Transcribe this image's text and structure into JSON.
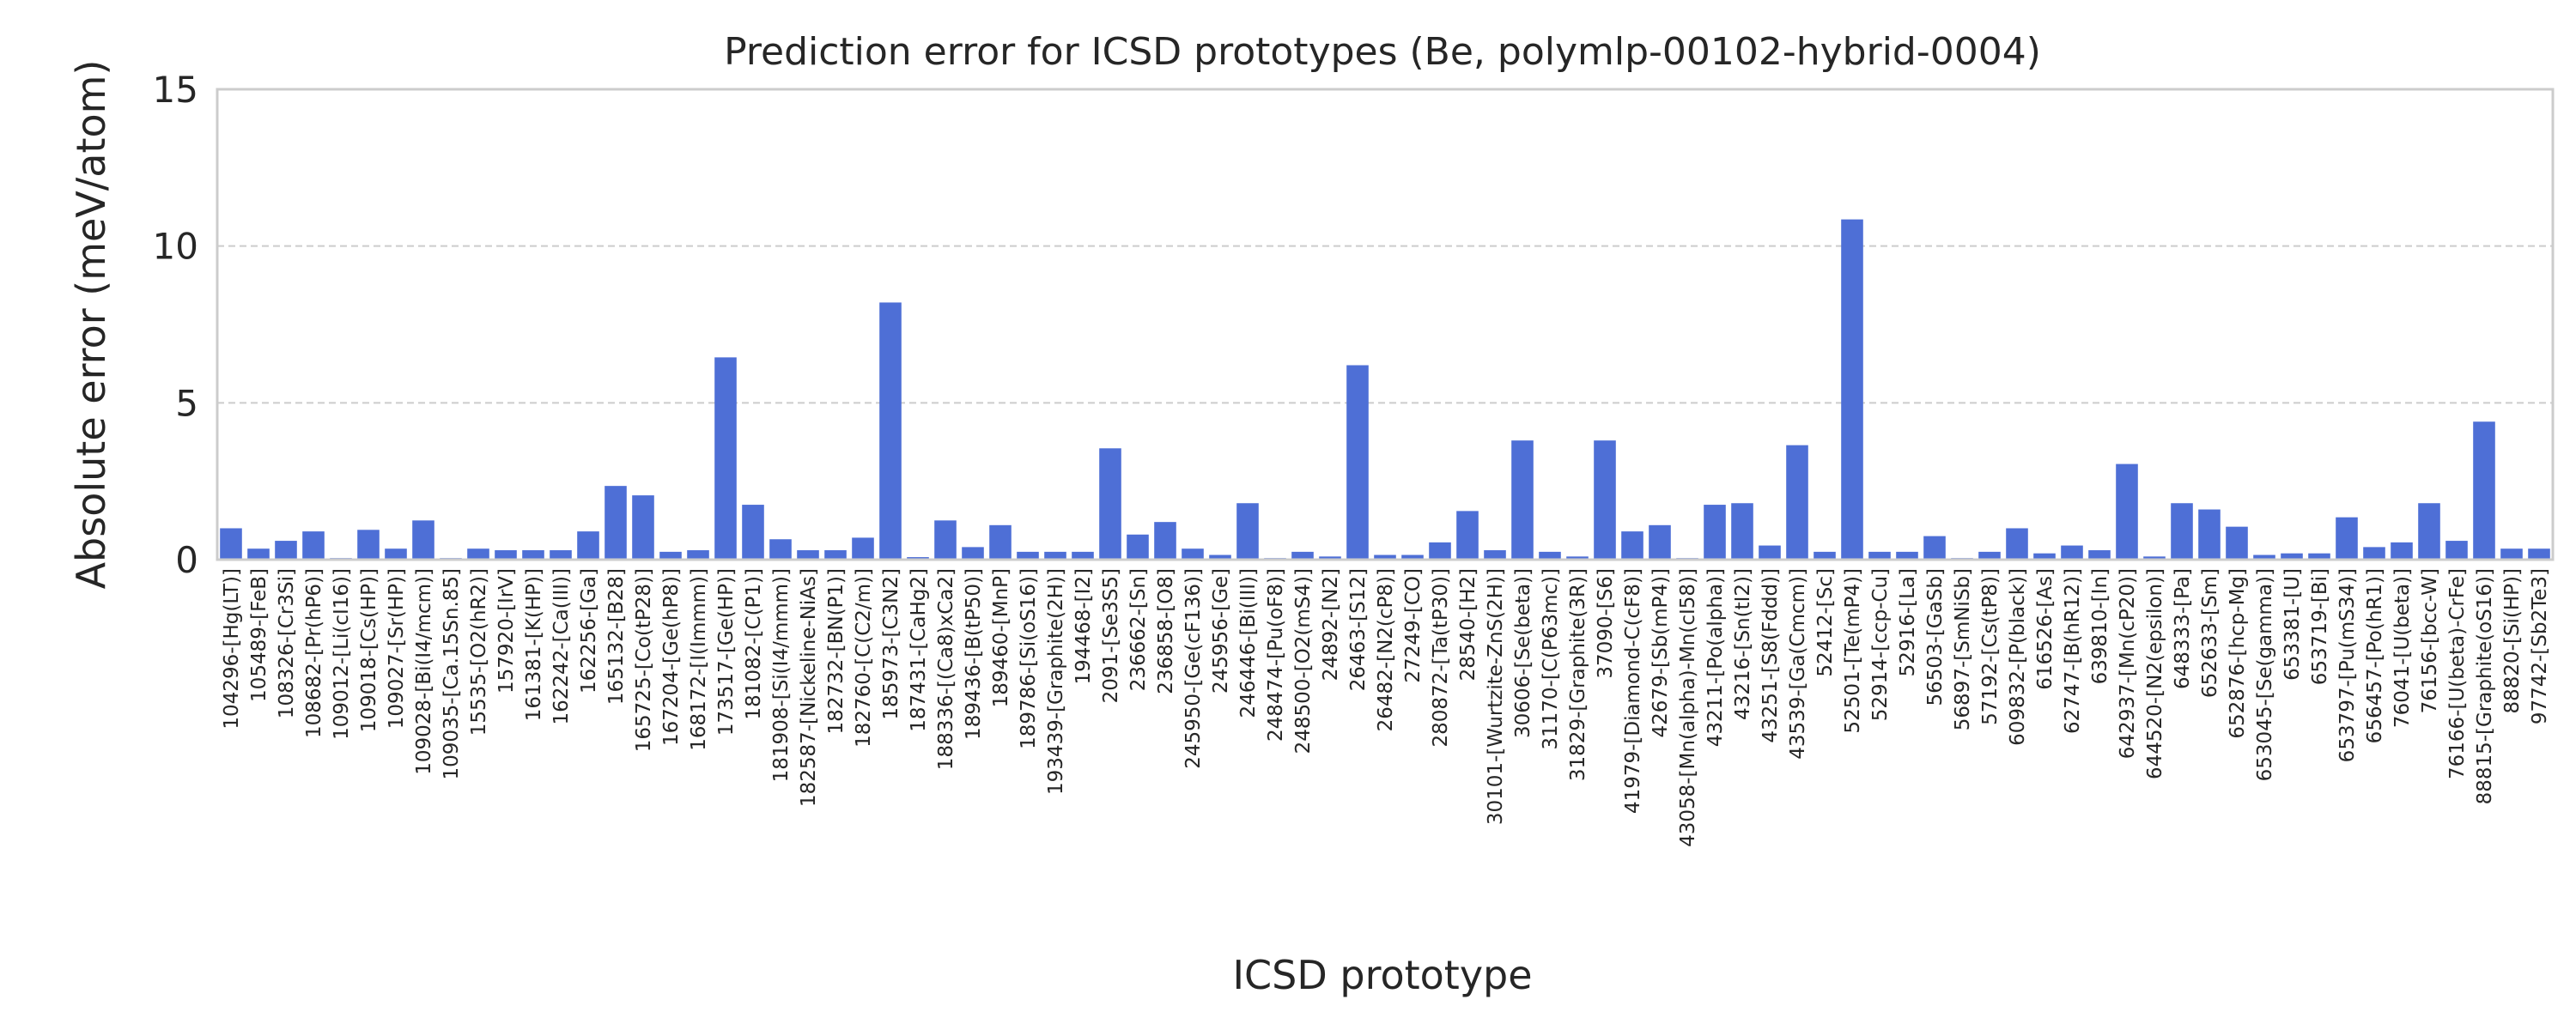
{
  "chart_data": {
    "type": "bar",
    "title": "Prediction error for ICSD prototypes (Be, polymlp-00102-hybrid-0004)",
    "xlabel": "ICSD prototype",
    "ylabel": "Absolute error (meV/atom)",
    "ylim": [
      0,
      15
    ],
    "yticks": [
      0,
      5,
      10,
      15
    ],
    "grid": true,
    "bar_color": "#4e6fd6",
    "categories": [
      "104296-[Hg(LT)]",
      "105489-[FeB]",
      "108326-[Cr3Si]",
      "108682-[Pr(hP6)]",
      "109012-[Li(cI16)]",
      "109018-[Cs(HP)]",
      "109027-[Sr(HP)]",
      "109028-[Bi(I4/mcm)]",
      "109035-[Ca.15Sn.85]",
      "15535-[O2(hR2)]",
      "157920-[IrV]",
      "161381-[K(HP)]",
      "162242-[Ca(III)]",
      "162256-[Ga]",
      "165132-[B28]",
      "165725-[Co(tP28)]",
      "167204-[Ge(hP8)]",
      "168172-[I(Immm)]",
      "173517-[Ge(HP)]",
      "181082-[C(P1)]",
      "181908-[Si(I4/mmm)]",
      "182587-[Nickeline-NiAs]",
      "182732-[BN(P1)]",
      "182760-[C(C2/m)]",
      "185973-[C3N2]",
      "187431-[CaHg2]",
      "188336-[(Ca8)xCa2]",
      "189436-[B(tP50)]",
      "189460-[MnP]",
      "189786-[Si(oS16)]",
      "193439-[Graphite(2H)]",
      "194468-[I2]",
      "2091-[Se3S5]",
      "236662-[Sn]",
      "236858-[O8]",
      "245950-[Ge(cF136)]",
      "245956-[Ge]",
      "246446-[Bi(III)]",
      "248474-[Pu(oF8)]",
      "248500-[O2(mS4)]",
      "24892-[N2]",
      "26463-[S12]",
      "26482-[N2(cP8)]",
      "27249-[CO]",
      "280872-[Ta(tP30)]",
      "28540-[H2]",
      "30101-[Wurtzite-ZnS(2H)]",
      "30606-[Se(beta)]",
      "31170-[C(P63mc)]",
      "31829-[Graphite(3R)]",
      "37090-[S6]",
      "41979-[Diamond-C(cF8)]",
      "42679-[Sb(mP4)]",
      "43058-[Mn(alpha)-Mn(cI58)]",
      "43211-[Po(alpha)]",
      "43216-[Sn(tI2)]",
      "43251-[S8(Fddd)]",
      "43539-[Ga(Cmcm)]",
      "52412-[Sc]",
      "52501-[Te(mP4)]",
      "52914-[ccp-Cu]",
      "52916-[La]",
      "56503-[GaSb]",
      "56897-[SmNiSb]",
      "57192-[Cs(tP8)]",
      "609832-[P(black)]",
      "616526-[As]",
      "62747-[B(hR12)]",
      "639810-[In]",
      "642937-[Mn(cP20)]",
      "644520-[N2(epsilon)]",
      "648333-[Pa]",
      "652633-[Sm]",
      "652876-[hcp-Mg]",
      "653045-[Se(gamma)]",
      "653381-[U]",
      "653719-[Bi]",
      "653797-[Pu(mS34)]",
      "656457-[Po(hR1)]",
      "76041-[U(beta)]",
      "76156-[bcc-W]",
      "76166-[U(beta)-CrFe]",
      "88815-[Graphite(oS16)]",
      "88820-[Si(HP)]",
      "97742-[Sb2Te3]"
    ],
    "values": [
      1.0,
      0.35,
      0.6,
      0.9,
      0.05,
      0.95,
      0.35,
      1.25,
      0.05,
      0.35,
      0.3,
      0.3,
      0.3,
      0.9,
      2.35,
      2.05,
      0.25,
      0.3,
      6.45,
      1.75,
      0.65,
      0.3,
      0.3,
      0.7,
      8.2,
      0.08,
      1.25,
      0.4,
      1.1,
      0.25,
      0.25,
      0.25,
      3.55,
      0.8,
      1.2,
      0.35,
      0.15,
      1.8,
      0.05,
      0.25,
      0.1,
      6.2,
      0.15,
      0.15,
      0.55,
      1.55,
      0.3,
      3.8,
      0.25,
      0.1,
      3.8,
      0.9,
      1.1,
      0.05,
      1.75,
      1.8,
      0.45,
      3.65,
      0.25,
      10.85,
      0.25,
      0.25,
      0.75,
      0.05,
      0.25,
      1.0,
      0.2,
      0.45,
      0.3,
      3.05,
      0.1,
      1.8,
      1.6,
      1.05,
      0.15,
      0.2,
      0.2,
      1.35,
      0.4,
      0.55,
      1.8,
      0.6,
      4.4,
      0.35,
      0.35
    ]
  }
}
